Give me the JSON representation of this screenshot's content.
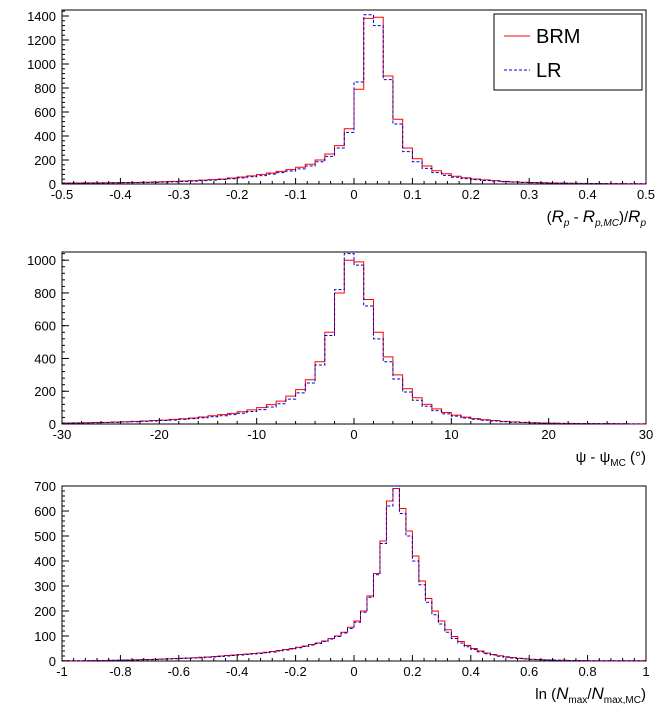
{
  "chart_data": [
    {
      "type": "histogram",
      "xlim": [
        -0.5,
        0.5
      ],
      "ylim": [
        0,
        1450
      ],
      "xticks": [
        "-0.5",
        "-0.4",
        "-0.3",
        "-0.2",
        "-0.1",
        "0",
        "0.1",
        "0.2",
        "0.3",
        "0.4",
        "0.5"
      ],
      "yticks": [
        "0",
        "200",
        "400",
        "600",
        "800",
        "1000",
        "1200",
        "1400"
      ],
      "xlabel_parts": [
        "(",
        "R",
        "p",
        " - ",
        "R",
        "p,MC",
        ")/",
        "R",
        "p"
      ],
      "bin_edges_range": [
        -0.5,
        0.5
      ],
      "legend": {
        "placement": "top-right",
        "entries": [
          "BRM",
          "LR"
        ]
      },
      "series": [
        {
          "name": "BRM",
          "color": "#ff0000",
          "linestyle": "solid",
          "values": [
            8,
            8,
            9,
            9,
            10,
            11,
            12,
            13,
            15,
            17,
            19,
            22,
            25,
            28,
            32,
            36,
            42,
            50,
            58,
            68,
            80,
            92,
            105,
            120,
            140,
            165,
            200,
            250,
            320,
            460,
            790,
            1380,
            1390,
            900,
            540,
            300,
            210,
            150,
            110,
            85,
            65,
            52,
            42,
            34,
            28,
            22,
            18,
            15,
            12,
            10,
            8,
            7,
            6,
            5,
            4,
            4,
            3,
            3,
            2,
            2
          ]
        },
        {
          "name": "LR",
          "color": "#0000cc",
          "linestyle": "dashed",
          "values": [
            6,
            6,
            7,
            7,
            8,
            9,
            10,
            11,
            12,
            14,
            16,
            18,
            21,
            24,
            28,
            32,
            37,
            44,
            51,
            60,
            70,
            82,
            95,
            108,
            126,
            150,
            185,
            230,
            300,
            430,
            850,
            1410,
            1320,
            870,
            500,
            270,
            185,
            130,
            95,
            72,
            56,
            45,
            36,
            29,
            24,
            19,
            16,
            13,
            10,
            9,
            7,
            6,
            5,
            4,
            4,
            3,
            3,
            2,
            2,
            2
          ]
        }
      ]
    },
    {
      "type": "histogram",
      "xlim": [
        -30,
        30
      ],
      "ylim": [
        0,
        1050
      ],
      "xticks": [
        "-30",
        "-20",
        "-10",
        "0",
        "10",
        "20",
        "30"
      ],
      "yticks": [
        "0",
        "200",
        "400",
        "600",
        "800",
        "1000"
      ],
      "xlabel_parts": [
        "ψ - ψ",
        "MC",
        " (°)"
      ],
      "bin_edges_range": [
        -30,
        30
      ],
      "series": [
        {
          "name": "BRM",
          "color": "#ff0000",
          "linestyle": "solid",
          "values": [
            6,
            7,
            8,
            9,
            10,
            12,
            14,
            16,
            18,
            21,
            24,
            28,
            32,
            37,
            43,
            50,
            57,
            65,
            75,
            86,
            100,
            118,
            140,
            170,
            210,
            270,
            380,
            560,
            800,
            1000,
            990,
            760,
            560,
            410,
            300,
            215,
            160,
            120,
            92,
            70,
            54,
            42,
            33,
            26,
            21,
            16,
            13,
            10,
            8,
            6,
            5,
            4,
            4,
            3,
            3,
            2,
            2,
            2,
            1,
            1
          ]
        },
        {
          "name": "LR",
          "color": "#0000cc",
          "linestyle": "dashed",
          "values": [
            5,
            6,
            7,
            8,
            9,
            10,
            12,
            14,
            16,
            18,
            21,
            24,
            28,
            33,
            38,
            44,
            50,
            57,
            66,
            76,
            88,
            104,
            124,
            152,
            190,
            250,
            360,
            540,
            820,
            1040,
            970,
            720,
            520,
            380,
            275,
            195,
            145,
            108,
            82,
            62,
            48,
            37,
            29,
            23,
            18,
            14,
            11,
            9,
            7,
            5,
            4,
            4,
            3,
            3,
            2,
            2,
            2,
            1,
            1,
            1
          ]
        }
      ]
    },
    {
      "type": "histogram",
      "xlim": [
        -1,
        1
      ],
      "ylim": [
        0,
        700
      ],
      "xticks": [
        "-1",
        "-0.8",
        "-0.6",
        "-0.4",
        "-0.2",
        "0",
        "0.2",
        "0.4",
        "0.6",
        "0.8",
        "1"
      ],
      "yticks": [
        "0",
        "100",
        "200",
        "300",
        "400",
        "500",
        "600",
        "700"
      ],
      "xlabel_parts": [
        "ln (",
        "N",
        "max",
        "/",
        "N",
        "max,MC",
        ")"
      ],
      "bin_edges_range": [
        -1,
        1
      ],
      "series": [
        {
          "name": "BRM",
          "color": "#ff0000",
          "linestyle": "solid",
          "values": [
            1,
            1,
            1,
            1,
            2,
            2,
            2,
            3,
            3,
            4,
            4,
            5,
            6,
            6,
            7,
            8,
            9,
            10,
            11,
            12,
            13,
            15,
            16,
            18,
            20,
            22,
            24,
            26,
            28,
            30,
            32,
            35,
            38,
            42,
            46,
            50,
            55,
            60,
            66,
            72,
            80,
            90,
            100,
            115,
            135,
            160,
            200,
            260,
            350,
            480,
            640,
            690,
            610,
            520,
            420,
            320,
            250,
            200,
            160,
            125,
            98,
            78,
            62,
            50,
            40,
            32,
            26,
            21,
            17,
            14,
            11,
            9,
            7,
            6,
            5,
            4,
            3,
            3,
            2,
            2,
            2,
            1,
            1,
            1,
            1,
            1,
            1,
            1,
            1,
            1
          ]
        },
        {
          "name": "LR",
          "color": "#0000cc",
          "linestyle": "dashed",
          "values": [
            1,
            1,
            1,
            1,
            1,
            2,
            2,
            2,
            3,
            3,
            4,
            4,
            5,
            5,
            6,
            7,
            8,
            9,
            10,
            11,
            12,
            13,
            15,
            16,
            18,
            20,
            22,
            24,
            26,
            28,
            30,
            33,
            36,
            40,
            44,
            48,
            53,
            58,
            64,
            70,
            78,
            88,
            98,
            112,
            130,
            155,
            195,
            255,
            345,
            470,
            620,
            700,
            590,
            500,
            400,
            305,
            235,
            185,
            148,
            115,
            90,
            72,
            57,
            46,
            37,
            29,
            24,
            19,
            15,
            12,
            10,
            8,
            6,
            5,
            4,
            4,
            3,
            2,
            2,
            2,
            1,
            1,
            1,
            1,
            1,
            1,
            1,
            1,
            1,
            1
          ]
        }
      ]
    }
  ]
}
